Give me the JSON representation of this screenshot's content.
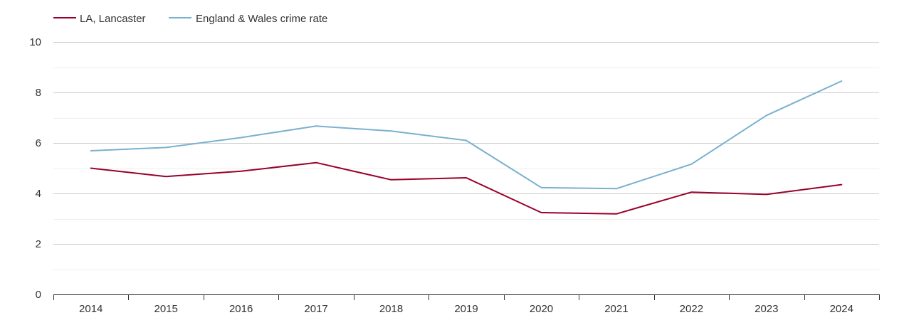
{
  "chart_data": {
    "type": "line",
    "title": "",
    "xlabel": "",
    "ylabel": "",
    "categories": [
      "2014",
      "2015",
      "2016",
      "2017",
      "2018",
      "2019",
      "2020",
      "2021",
      "2022",
      "2023",
      "2024"
    ],
    "ylim": [
      0,
      10
    ],
    "yticks": [
      "0",
      "2",
      "4",
      "6",
      "8",
      "10"
    ],
    "grid": true,
    "legend_position": "top-left",
    "series": [
      {
        "name": "LA, Lancaster",
        "color": "#99002b",
        "values": [
          5.0,
          4.67,
          4.88,
          5.22,
          4.54,
          4.62,
          3.24,
          3.19,
          4.05,
          3.96,
          4.35
        ]
      },
      {
        "name": "England & Wales crime rate",
        "color": "#7ab0d0",
        "values": [
          5.69,
          5.82,
          6.21,
          6.67,
          6.47,
          6.1,
          4.23,
          4.19,
          5.16,
          7.09,
          8.45
        ]
      }
    ]
  }
}
